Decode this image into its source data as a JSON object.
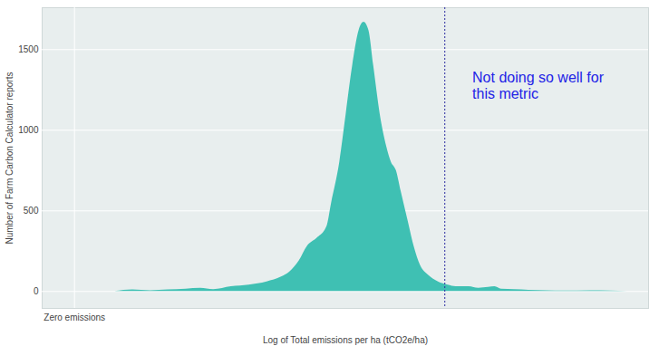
{
  "chart_data": {
    "type": "area",
    "x_label": "Log of Total emissions per ha (tCO2e/ha)",
    "y_label": "Number of Farm Carbon Calculator reports",
    "color": "#3fc0b3",
    "x": [
      0.25,
      0.36,
      0.47,
      0.58,
      0.69,
      0.78,
      0.86,
      0.97,
      1.08,
      1.19,
      1.28,
      1.33,
      1.39,
      1.44,
      1.5,
      1.56,
      1.59,
      1.64,
      1.68,
      1.72,
      1.76,
      1.79,
      1.82,
      1.85,
      1.89,
      1.93,
      1.96,
      1.99,
      2.02,
      2.06,
      2.1,
      2.14,
      2.19,
      2.25,
      2.31,
      2.36,
      2.44,
      2.5,
      2.56,
      2.6,
      2.64,
      2.72,
      2.81,
      2.92,
      3.03,
      3.19,
      3.31,
      3.42
    ],
    "values": [
      0,
      10,
      5,
      10,
      15,
      20,
      12,
      30,
      40,
      60,
      90,
      120,
      190,
      280,
      330,
      400,
      550,
      800,
      1100,
      1400,
      1620,
      1670,
      1620,
      1400,
      1100,
      900,
      800,
      750,
      620,
      450,
      280,
      160,
      100,
      60,
      40,
      30,
      30,
      20,
      25,
      30,
      15,
      12,
      8,
      5,
      3,
      5,
      3,
      0
    ],
    "xlim": [
      -0.2,
      3.55
    ],
    "xticks": [
      {
        "value": 0,
        "label": "Zero emissions"
      }
    ],
    "ylim": [
      -105,
      1760
    ],
    "yticks": [
      0,
      500,
      1000,
      1500
    ],
    "grid": true,
    "vline": 2.29,
    "annotation": {
      "text": "Not doing so well for\nthis metric",
      "x": 2.46,
      "y": 1365
    }
  }
}
